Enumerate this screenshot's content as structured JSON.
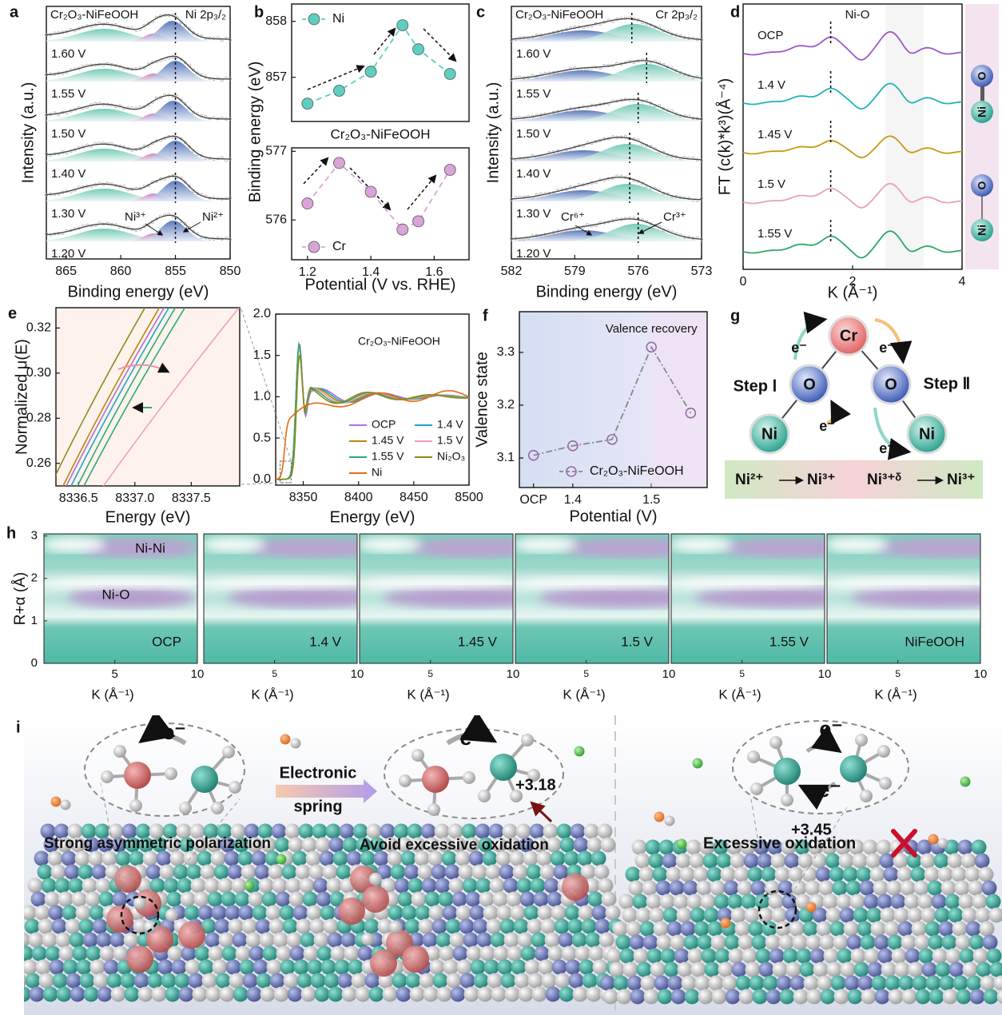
{
  "chart_data": [
    {
      "type": "spectrum",
      "panel_label": "a",
      "title": "Cr₂O₃-NiFeOOH",
      "subtitle": "Ni 2p₃/₂",
      "ylabel": "Intensity (a.u.)",
      "xlabel": "Binding energy (eV)",
      "xlim": [
        866.8,
        850
      ],
      "xticks": [
        865,
        860,
        855,
        850
      ],
      "curve_labels": [
        "1.60 V",
        "1.55 V",
        "1.50 V",
        "1.40 V",
        "1.30 V",
        "1.20 V"
      ],
      "annotations": [
        "Ni³⁺",
        "Ni²⁺"
      ]
    },
    {
      "type": "scatter-line",
      "panel_label": "b",
      "ylabel": "Binding energy (eV)",
      "x": [
        1.2,
        1.3,
        1.4,
        1.5,
        1.55,
        1.65
      ],
      "series": [
        {
          "name": "Ni",
          "color": "#5ccfc0",
          "values": [
            856.53,
            856.76,
            857.1,
            857.93,
            857.5,
            857.06
          ]
        }
      ],
      "xlim": [
        1.15,
        1.71
      ],
      "ylim": [
        856.21,
        858.31
      ],
      "yticks": [
        857,
        858
      ],
      "legend": "upper left"
    },
    {
      "type": "scatter-line",
      "title": "Cr₂O₃-NiFeOOH",
      "xlabel": "Potential (V vs. RHE)",
      "x": [
        1.2,
        1.3,
        1.4,
        1.5,
        1.55,
        1.65
      ],
      "series": [
        {
          "name": "Cr",
          "color": "#d9a5d8",
          "values": [
            576.24,
            576.83,
            576.41,
            575.86,
            575.98,
            576.73
          ]
        }
      ],
      "xlim": [
        1.15,
        1.71
      ],
      "xticks": [
        1.2,
        1.4,
        1.6
      ],
      "ylim": [
        575.42,
        577.05
      ],
      "yticks": [
        576,
        577
      ],
      "legend": "lower left"
    },
    {
      "type": "spectrum",
      "panel_label": "c",
      "title": "Cr₂O₃-NiFeOOH",
      "subtitle": "Cr 2p₃/₂",
      "ylabel": "Intensity (a.u.)",
      "xlabel": "Binding energy (eV)",
      "xlim": [
        582,
        573
      ],
      "xticks": [
        582,
        579,
        576,
        573
      ],
      "curve_labels": [
        "1.60 V",
        "1.55 V",
        "1.50 V",
        "1.40 V",
        "1.30 V",
        "1.20 V"
      ],
      "annotations": [
        "Cr⁶⁺",
        "Cr³⁺"
      ]
    },
    {
      "type": "ft",
      "panel_label": "d",
      "ylabel": "FT (c(k)*k³)(Å⁻⁴)",
      "xlabel": "K (Å⁻¹)",
      "annotation": "Ni-O",
      "curve_labels": [
        "OCP",
        "1.4 V",
        "1.45 V",
        "1.5 V",
        "1.55 V"
      ],
      "colors": [
        "#9b59c6",
        "#1fb5b5",
        "#c79a12",
        "#e8a0bc",
        "#2ea86a"
      ],
      "xlim": [
        0,
        4
      ],
      "xticks": [
        0,
        2,
        4
      ],
      "legend_icons": [
        "Ni",
        "O"
      ]
    },
    {
      "type": "line",
      "panel_label": "e",
      "ylabel": "Normalized μ(E)",
      "xlabel": "Energy (eV)",
      "xlim": [
        8336.3,
        8337.93
      ],
      "xticks": [
        8336.5,
        {
          "value": 8337.0,
          "label": "8337.0"
        },
        8337.5
      ],
      "ylim": [
        0.25,
        0.329
      ],
      "yticks": [
        0.26,
        0.28,
        {
          "value": 0.3,
          "label": "0.30"
        },
        0.32
      ]
    },
    {
      "type": "line",
      "title": "Cr₂O₃-NiFeOOH",
      "xlabel": "Energy (eV)",
      "xlim": [
        8325,
        8500
      ],
      "xticks": [
        8350,
        8400,
        8450,
        8500
      ],
      "ylim": [
        -0.07,
        2.0
      ],
      "yticks": [
        {
          "value": 0,
          "label": "0.0"
        },
        0.5,
        {
          "value": 1,
          "label": "1.0"
        },
        1.5,
        {
          "value": 2,
          "label": "2.0"
        }
      ],
      "series": [
        {
          "name": "OCP",
          "color": "#b06fd8"
        },
        {
          "name": "1.4 V",
          "color": "#1aa8c8"
        },
        {
          "name": "1.45 V",
          "color": "#b8860b"
        },
        {
          "name": "1.5 V",
          "color": "#f0a0b8"
        },
        {
          "name": "1.55 V",
          "color": "#2ea878"
        },
        {
          "name": "Ni₂O₃",
          "color": "#8a8a1a"
        },
        {
          "name": "Ni",
          "color": "#e86a10"
        }
      ]
    },
    {
      "type": "scatter-line",
      "panel_label": "f",
      "ylabel": "Valence state",
      "xlabel": "Potential (V)",
      "annotation": "Valence recovery",
      "x": [
        1.35,
        1.4,
        1.45,
        1.5,
        1.55
      ],
      "series": [
        {
          "name": "Cr₂O₃-NiFeOOH",
          "color": "#9a6aa8",
          "values": [
            3.105,
            3.123,
            3.135,
            3.31,
            3.185
          ]
        }
      ],
      "xlim": [
        1.332,
        1.571
      ],
      "xticks": [
        {
          "value": 1.35,
          "label": "OCP"
        },
        1.4,
        1.5
      ],
      "ylim": [
        3.044,
        3.377
      ],
      "yticks": [
        3.1,
        3.2,
        3.3
      ],
      "legend": "lower right"
    },
    {
      "type": "heatmap",
      "panel_label": "h",
      "ylabel": "R+α (Å)",
      "xlabel": "K (Å⁻¹)",
      "titles": [
        "OCP",
        "1.4 V",
        "1.45 V",
        "1.5 V",
        "1.55 V",
        "NiFeOOH"
      ],
      "annotations": [
        "Ni-Ni",
        "Ni-O"
      ],
      "xlim": [
        0.71,
        10
      ],
      "xticks": [
        5,
        10
      ],
      "ylim": [
        0,
        3.05
      ],
      "yticks": [
        0,
        1,
        2,
        3
      ]
    }
  ],
  "diagram_g": {
    "panel_label": "g",
    "nodes": [
      "Cr",
      "O",
      "O",
      "Ni",
      "Ni"
    ],
    "electron": "e⁻",
    "steps": [
      "Step Ⅰ",
      "Step Ⅱ"
    ],
    "transitions": [
      [
        "Ni²⁺",
        "Ni³⁺"
      ],
      [
        "Ni³⁺ᵟ",
        "Ni³⁺"
      ]
    ]
  },
  "illustration_i": {
    "panel_label": "i",
    "electron": "e⁻",
    "spring": [
      "Electronic",
      "spring"
    ],
    "captions": [
      "Strong asymmetric polarization",
      "Avoid excessive oxidation",
      "Excessive oxidation"
    ],
    "valences": [
      "+3.18",
      "+3.45"
    ]
  }
}
